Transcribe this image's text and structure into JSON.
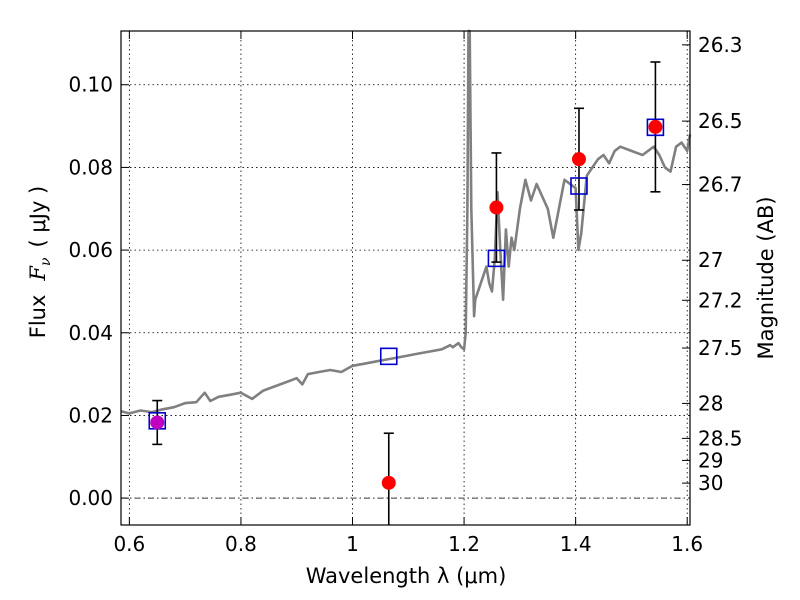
{
  "chart_data": {
    "type": "scatter",
    "xlabel": "Wavelength  λ (μm)",
    "ylabel_main": "Flux",
    "ylabel_symbol": "F",
    "ylabel_sub": "ν",
    "ylabel_unit": "( μJy )",
    "y2label": "Magnitude (AB)",
    "xlim": [
      0.585,
      1.605
    ],
    "ylim": [
      -0.0065,
      0.113
    ],
    "grid": true,
    "xticks": [
      {
        "value": 0.6,
        "label": "0.6"
      },
      {
        "value": 0.8,
        "label": "0.8"
      },
      {
        "value": 1.0,
        "label": "1"
      },
      {
        "value": 1.2,
        "label": "1.2"
      },
      {
        "value": 1.4,
        "label": "1.4"
      },
      {
        "value": 1.6,
        "label": "1.6"
      }
    ],
    "yticks": [
      {
        "value": 0.0,
        "label": "0.00"
      },
      {
        "value": 0.02,
        "label": "0.02"
      },
      {
        "value": 0.04,
        "label": "0.04"
      },
      {
        "value": 0.06,
        "label": "0.06"
      },
      {
        "value": 0.08,
        "label": "0.08"
      },
      {
        "value": 0.1,
        "label": "0.10"
      }
    ],
    "y2ticks": [
      {
        "value": 26.3,
        "label": "26.3"
      },
      {
        "value": 26.5,
        "label": "26.5"
      },
      {
        "value": 26.7,
        "label": "26.7"
      },
      {
        "value": 27.0,
        "label": "27"
      },
      {
        "value": 27.2,
        "label": "27.2"
      },
      {
        "value": 27.5,
        "label": "27.5"
      },
      {
        "value": 28.0,
        "label": "28"
      },
      {
        "value": 28.5,
        "label": "28.5"
      },
      {
        "value": 29.0,
        "label": "29"
      },
      {
        "value": 30.0,
        "label": "30"
      }
    ],
    "series": [
      {
        "kind": "observed",
        "marker": "circle",
        "color": "#ff0000",
        "points": [
          {
            "x": 0.65,
            "y": 0.0183,
            "err": 0.0053
          },
          {
            "x": 1.065,
            "y": 0.0037,
            "err": 0.012
          },
          {
            "x": 1.258,
            "y": 0.0703,
            "err": 0.0132
          },
          {
            "x": 1.406,
            "y": 0.082,
            "err": 0.0123
          },
          {
            "x": 1.543,
            "y": 0.0898,
            "err": 0.0157
          }
        ]
      },
      {
        "kind": "model-photometry",
        "marker": "square",
        "color": "#0000cc",
        "points": [
          {
            "x": 0.65,
            "y": 0.0187
          },
          {
            "x": 1.065,
            "y": 0.0343
          },
          {
            "x": 1.258,
            "y": 0.058
          },
          {
            "x": 1.406,
            "y": 0.0755
          },
          {
            "x": 1.543,
            "y": 0.0897
          }
        ]
      },
      {
        "kind": "model-spectrum",
        "marker": "line",
        "color": "#808080",
        "x": [
          0.585,
          0.6,
          0.62,
          0.64,
          0.66,
          0.68,
          0.7,
          0.72,
          0.735,
          0.745,
          0.76,
          0.78,
          0.8,
          0.82,
          0.84,
          0.86,
          0.88,
          0.9,
          0.91,
          0.92,
          0.94,
          0.96,
          0.98,
          1.0,
          1.02,
          1.04,
          1.06,
          1.08,
          1.1,
          1.12,
          1.14,
          1.16,
          1.175,
          1.18,
          1.19,
          1.195,
          1.2,
          1.203,
          1.206,
          1.208,
          1.21,
          1.213,
          1.218,
          1.22,
          1.23,
          1.24,
          1.245,
          1.25,
          1.255,
          1.26,
          1.265,
          1.27,
          1.275,
          1.28,
          1.285,
          1.29,
          1.3,
          1.31,
          1.32,
          1.33,
          1.34,
          1.35,
          1.36,
          1.38,
          1.39,
          1.4,
          1.405,
          1.41,
          1.42,
          1.43,
          1.44,
          1.45,
          1.46,
          1.47,
          1.48,
          1.5,
          1.52,
          1.54,
          1.55,
          1.56,
          1.57,
          1.58,
          1.59,
          1.6,
          1.605
        ],
        "y": [
          0.021,
          0.0205,
          0.0212,
          0.0208,
          0.0215,
          0.022,
          0.023,
          0.0232,
          0.0255,
          0.0235,
          0.0245,
          0.025,
          0.0255,
          0.024,
          0.026,
          0.027,
          0.028,
          0.029,
          0.0275,
          0.03,
          0.0305,
          0.031,
          0.0305,
          0.032,
          0.0325,
          0.033,
          0.0335,
          0.034,
          0.0345,
          0.035,
          0.0355,
          0.036,
          0.037,
          0.0365,
          0.0375,
          0.0365,
          0.036,
          0.04,
          0.07,
          0.113,
          0.113,
          0.07,
          0.044,
          0.048,
          0.052,
          0.056,
          0.052,
          0.05,
          0.058,
          0.074,
          0.06,
          0.048,
          0.065,
          0.056,
          0.063,
          0.06,
          0.07,
          0.077,
          0.072,
          0.076,
          0.073,
          0.07,
          0.063,
          0.077,
          0.076,
          0.075,
          0.06,
          0.064,
          0.078,
          0.08,
          0.082,
          0.083,
          0.081,
          0.084,
          0.085,
          0.084,
          0.083,
          0.085,
          0.083,
          0.08,
          0.079,
          0.085,
          0.086,
          0.084,
          0.088
        ]
      }
    ]
  }
}
